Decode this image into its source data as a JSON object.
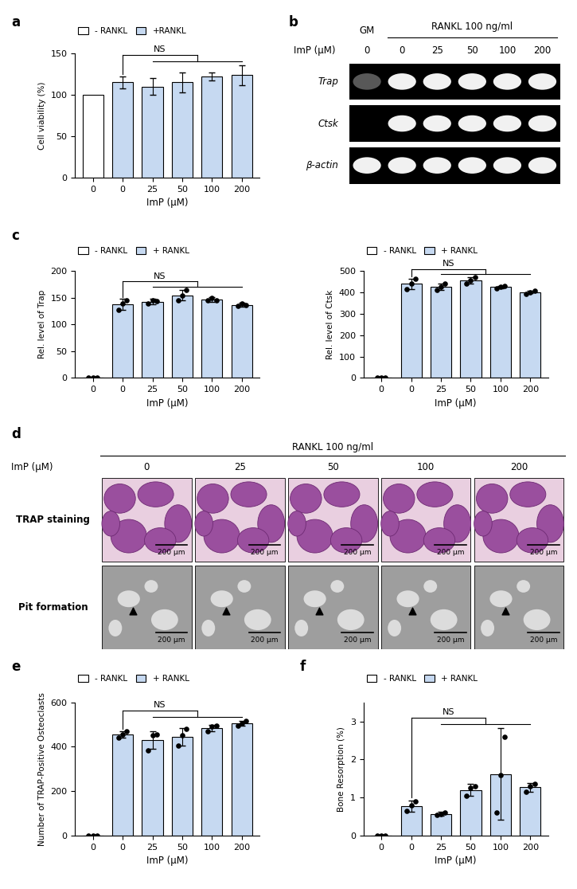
{
  "panel_labels": [
    "a",
    "b",
    "c",
    "d",
    "e",
    "f"
  ],
  "chart_data": [
    {
      "type": "bar",
      "categories": [
        "0",
        "0",
        "25",
        "50",
        "100",
        "200"
      ],
      "x_label": "ImP (μM)",
      "y_label": "Cell viability (%)",
      "ylim": [
        0,
        150
      ],
      "yticks": [
        0,
        50,
        100,
        150
      ],
      "legend": "upper left",
      "annotation": "NS",
      "series": [
        {
          "name": "- RANKL",
          "color": "#ffffff",
          "values": [
            100,
            null,
            null,
            null,
            null,
            null
          ],
          "errors": [
            null,
            null,
            null,
            null,
            null,
            null
          ]
        },
        {
          "name": "+RANKL",
          "color": "#c6d9f1",
          "values": [
            null,
            115,
            110,
            115,
            122,
            124
          ],
          "errors": [
            null,
            7,
            10,
            12,
            5,
            12
          ]
        }
      ]
    },
    {
      "type": "bar",
      "categories": [
        "0",
        "0",
        "25",
        "50",
        "100",
        "200"
      ],
      "x_label": "ImP (μM)",
      "y_label": "Rel. level of Trap",
      "ylim": [
        0,
        200
      ],
      "yticks": [
        0,
        50,
        100,
        150,
        200
      ],
      "legend": "upper left",
      "annotation": "NS",
      "series": [
        {
          "name": "- RANKL",
          "color": "#ffffff",
          "values": [
            1,
            null,
            null,
            null,
            null,
            null
          ],
          "errors": [
            0.5,
            null,
            null,
            null,
            null,
            null
          ],
          "points": [
            [
              1,
              1,
              1
            ],
            null,
            null,
            null,
            null,
            null
          ]
        },
        {
          "name": "+ RANKL",
          "color": "#c6d9f1",
          "values": [
            null,
            138,
            143,
            155,
            147,
            137
          ],
          "errors": [
            null,
            10,
            5,
            10,
            4,
            4
          ],
          "points": [
            null,
            [
              128,
              140,
              146
            ],
            [
              140,
              145,
              144
            ],
            [
              145,
              155,
              165
            ],
            [
              145,
              150,
              146
            ],
            [
              135,
              140,
              136
            ]
          ]
        }
      ]
    },
    {
      "type": "bar",
      "categories": [
        "0",
        "0",
        "25",
        "50",
        "100",
        "200"
      ],
      "x_label": "ImP (μM)",
      "y_label": "Rel. level of Ctsk",
      "ylim": [
        0,
        500
      ],
      "yticks": [
        0,
        100,
        200,
        300,
        400,
        500
      ],
      "legend": "upper left",
      "annotation": "NS",
      "series": [
        {
          "name": "- RANKL",
          "color": "#ffffff",
          "values": [
            2,
            null,
            null,
            null,
            null,
            null
          ],
          "errors": [
            1,
            null,
            null,
            null,
            null,
            null
          ],
          "points": [
            [
              2,
              2,
              2
            ],
            null,
            null,
            null,
            null,
            null
          ]
        },
        {
          "name": "+ RANKL",
          "color": "#c6d9f1",
          "values": [
            null,
            440,
            425,
            455,
            425,
            402
          ],
          "errors": [
            null,
            25,
            15,
            15,
            5,
            6
          ],
          "points": [
            null,
            [
              415,
              440,
              465
            ],
            [
              410,
              425,
              440
            ],
            [
              440,
              455,
              470
            ],
            [
              420,
              425,
              430
            ],
            [
              395,
              402,
              408
            ]
          ]
        }
      ]
    },
    {
      "type": "bar",
      "categories": [
        "0",
        "0",
        "25",
        "50",
        "100",
        "200"
      ],
      "x_label": "ImP (μM)",
      "y_label": "Number of TRAP-Positive Osteoclasts",
      "ylim": [
        0,
        600
      ],
      "yticks": [
        0,
        200,
        400,
        600
      ],
      "legend": "upper left",
      "annotation": "NS",
      "series": [
        {
          "name": "- RANKL",
          "color": "#ffffff",
          "values": [
            0,
            null,
            null,
            null,
            null,
            null
          ],
          "errors": [
            0,
            null,
            null,
            null,
            null,
            null
          ],
          "points": [
            [
              0,
              0,
              0
            ],
            null,
            null,
            null,
            null,
            null
          ]
        },
        {
          "name": "+ RANKL",
          "color": "#c6d9f1",
          "values": [
            null,
            455,
            430,
            445,
            485,
            505
          ],
          "errors": [
            null,
            15,
            40,
            40,
            15,
            10
          ],
          "points": [
            null,
            [
              440,
              455,
              470
            ],
            [
              385,
              450,
              455
            ],
            [
              405,
              450,
              480
            ],
            [
              470,
              490,
              495
            ],
            [
              495,
              505,
              515
            ]
          ]
        }
      ]
    },
    {
      "type": "bar",
      "categories": [
        "0",
        "0",
        "25",
        "50",
        "100",
        "200"
      ],
      "x_label": "ImP (μM)",
      "y_label": "Bone Resorption (%)",
      "ylim": [
        0,
        3.5
      ],
      "yticks": [
        0,
        1,
        2,
        3
      ],
      "legend": "upper left",
      "annotation": "NS",
      "series": [
        {
          "name": "- RANKL",
          "color": "#ffffff",
          "values": [
            0,
            null,
            null,
            null,
            null,
            null
          ],
          "errors": [
            0,
            null,
            null,
            null,
            null,
            null
          ],
          "points": [
            [
              0,
              0,
              0
            ],
            null,
            null,
            null,
            null,
            null
          ]
        },
        {
          "name": "+ RANKL",
          "color": "#c6d9f1",
          "values": [
            null,
            0.78,
            0.57,
            1.2,
            1.62,
            1.27
          ],
          "errors": [
            null,
            0.15,
            0.05,
            0.15,
            1.2,
            0.12
          ],
          "points": [
            null,
            [
              0.65,
              0.8,
              0.9
            ],
            [
              0.55,
              0.57,
              0.6
            ],
            [
              1.05,
              1.25,
              1.3
            ],
            [
              0.6,
              1.6,
              2.6
            ],
            [
              1.15,
              1.3,
              1.35
            ]
          ]
        }
      ]
    }
  ],
  "gel": {
    "header_left": "GM",
    "header_right": "RANKL 100 ng/ml",
    "row_title": "ImP (μM)",
    "lanes": [
      "0",
      "0",
      "25",
      "50",
      "100",
      "200"
    ],
    "rows": [
      {
        "label": "Trap",
        "bands": [
          0.25,
          1,
          1,
          1,
          1,
          1
        ]
      },
      {
        "label": "Ctsk",
        "bands": [
          0,
          1,
          1,
          1,
          1,
          1
        ]
      },
      {
        "label": "β-actin",
        "bands": [
          1,
          1,
          1,
          1,
          1,
          1
        ]
      }
    ]
  },
  "micrographs": {
    "header": "RANKL 100 ng/ml",
    "row_title": "ImP (μM)",
    "columns": [
      "0",
      "25",
      "50",
      "100",
      "200"
    ],
    "rows": [
      "TRAP staining",
      "Pit formation"
    ],
    "scale_bar": "200 μm"
  }
}
